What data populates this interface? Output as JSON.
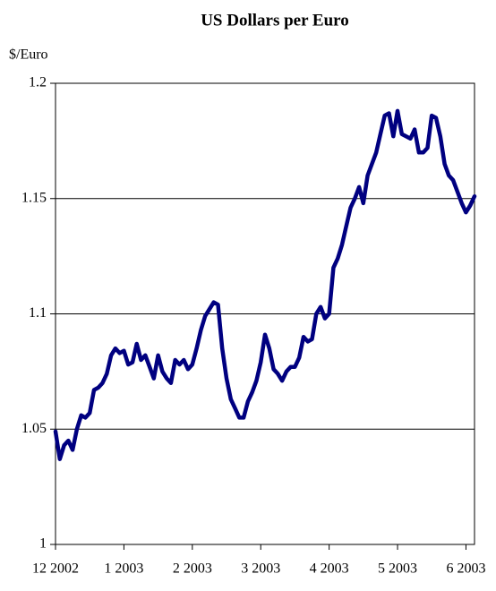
{
  "chart_data": {
    "type": "line",
    "title": "US Dollars per Euro",
    "y_label": "$/Euro",
    "categories": [
      "12 2002",
      null,
      null,
      null,
      null,
      null,
      null,
      null,
      null,
      null,
      null,
      null,
      null,
      null,
      null,
      null,
      "1 2003",
      null,
      null,
      null,
      null,
      null,
      null,
      null,
      null,
      null,
      null,
      null,
      null,
      null,
      null,
      null,
      "2 2003",
      null,
      null,
      null,
      null,
      null,
      null,
      null,
      null,
      null,
      null,
      null,
      null,
      null,
      null,
      null,
      "3 2003",
      null,
      null,
      null,
      null,
      null,
      null,
      null,
      null,
      null,
      null,
      null,
      null,
      null,
      null,
      null,
      "4 2003",
      null,
      null,
      null,
      null,
      null,
      null,
      null,
      null,
      null,
      null,
      null,
      null,
      null,
      null,
      null,
      "5 2003",
      null,
      null,
      null,
      null,
      null,
      null,
      null,
      null,
      null,
      null,
      null,
      null,
      null,
      null,
      null,
      "6 2003",
      null,
      null
    ],
    "series": [
      {
        "name": "US Dollars per Euro",
        "color": "#000080",
        "values": [
          1.049,
          1.037,
          1.043,
          1.045,
          1.041,
          1.05,
          1.056,
          1.055,
          1.057,
          1.067,
          1.068,
          1.07,
          1.074,
          1.082,
          1.085,
          1.083,
          1.084,
          1.078,
          1.079,
          1.087,
          1.08,
          1.082,
          1.077,
          1.072,
          1.082,
          1.075,
          1.072,
          1.07,
          1.08,
          1.078,
          1.08,
          1.076,
          1.078,
          1.085,
          1.093,
          1.099,
          1.102,
          1.105,
          1.104,
          1.085,
          1.072,
          1.063,
          1.059,
          1.055,
          1.055,
          1.062,
          1.066,
          1.071,
          1.079,
          1.091,
          1.085,
          1.076,
          1.074,
          1.071,
          1.075,
          1.077,
          1.077,
          1.081,
          1.09,
          1.088,
          1.089,
          1.1,
          1.103,
          1.098,
          1.1,
          1.12,
          1.124,
          1.13,
          1.138,
          1.146,
          1.15,
          1.155,
          1.148,
          1.16,
          1.165,
          1.17,
          1.178,
          1.186,
          1.187,
          1.177,
          1.188,
          1.178,
          1.177,
          1.176,
          1.18,
          1.17,
          1.17,
          1.172,
          1.186,
          1.185,
          1.177,
          1.165,
          1.16,
          1.158,
          1.153,
          1.148,
          1.144,
          1.147,
          1.151
        ]
      }
    ],
    "ylim": [
      1,
      1.2
    ],
    "yticks": [
      1,
      1.05,
      1.1,
      1.15,
      1.2
    ],
    "grid": true
  }
}
